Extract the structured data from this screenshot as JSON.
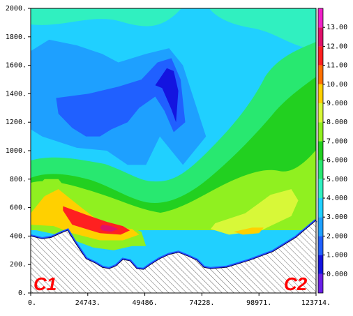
{
  "chart_data": {
    "type": "heatmap",
    "title": "",
    "xlabel": "",
    "ylabel": "",
    "x_ticks": [
      "0.",
      "24743.",
      "49486.",
      "74228.",
      "98971.",
      "123714."
    ],
    "y_ticks": [
      "0.",
      "200.",
      "400.",
      "600.",
      "800.",
      "1000.",
      "1200.",
      "1400.",
      "1600.",
      "1800.",
      "2000."
    ],
    "xlim": [
      0,
      123714
    ],
    "ylim": [
      0,
      2000
    ],
    "colorbar": {
      "ticks": [
        "0.000",
        "1.000",
        "2.000",
        "3.000",
        "4.000",
        "5.000",
        "6.000",
        "7.000",
        "8.000",
        "9.000",
        "10.00",
        "11.00",
        "12.00",
        "13.00"
      ],
      "range": [
        -1,
        14
      ],
      "colors": [
        "#6a1fe8",
        "#1414e0",
        "#2060ff",
        "#1ea0ff",
        "#20d0ff",
        "#30f0c0",
        "#28e870",
        "#22d020",
        "#90f020",
        "#d8f838",
        "#ffd000",
        "#ff7000",
        "#ff2020",
        "#e0106a",
        "#f020c8",
        "#c040ff"
      ]
    },
    "terrain_profile": [
      [
        0,
        400
      ],
      [
        5000,
        380
      ],
      [
        9000,
        390
      ],
      [
        13000,
        420
      ],
      [
        16000,
        440
      ],
      [
        19000,
        360
      ],
      [
        24000,
        240
      ],
      [
        28000,
        210
      ],
      [
        31000,
        180
      ],
      [
        34000,
        170
      ],
      [
        37000,
        190
      ],
      [
        40000,
        235
      ],
      [
        43000,
        225
      ],
      [
        46000,
        170
      ],
      [
        49000,
        165
      ],
      [
        52000,
        200
      ],
      [
        56000,
        240
      ],
      [
        60000,
        270
      ],
      [
        64000,
        285
      ],
      [
        68000,
        260
      ],
      [
        72000,
        230
      ],
      [
        75000,
        180
      ],
      [
        78000,
        170
      ],
      [
        85000,
        180
      ],
      [
        95000,
        230
      ],
      [
        105000,
        290
      ],
      [
        115000,
        390
      ],
      [
        123714,
        510
      ]
    ],
    "contour_regions": [
      {
        "level": 2,
        "label": "2.000",
        "points": [
          [
            0,
            1700
          ],
          [
            8000,
            1780
          ],
          [
            20000,
            1740
          ],
          [
            31000,
            1680
          ],
          [
            38000,
            1620
          ],
          [
            50000,
            1680
          ],
          [
            60000,
            1720
          ],
          [
            66000,
            1600
          ],
          [
            70000,
            1400
          ],
          [
            76000,
            1100
          ],
          [
            66000,
            900
          ],
          [
            56000,
            1100
          ],
          [
            50000,
            900
          ],
          [
            42000,
            900
          ],
          [
            33000,
            1000
          ],
          [
            20000,
            1020
          ],
          [
            5000,
            1100
          ],
          [
            0,
            1150
          ]
        ]
      },
      {
        "level": 1,
        "label": "1.000",
        "points": [
          [
            11000,
            1370
          ],
          [
            25000,
            1400
          ],
          [
            38000,
            1450
          ],
          [
            48000,
            1500
          ],
          [
            55000,
            1620
          ],
          [
            61000,
            1650
          ],
          [
            65000,
            1500
          ],
          [
            67000,
            1200
          ],
          [
            62000,
            1130
          ],
          [
            58000,
            1280
          ],
          [
            54000,
            1380
          ],
          [
            47000,
            1300
          ],
          [
            42000,
            1200
          ],
          [
            35000,
            1150
          ],
          [
            30000,
            1100
          ],
          [
            24000,
            1100
          ],
          [
            18000,
            1160
          ],
          [
            12000,
            1260
          ]
        ]
      },
      {
        "level": 0,
        "label": "0.000",
        "points": [
          [
            54000,
            1460
          ],
          [
            59000,
            1580
          ],
          [
            62000,
            1560
          ],
          [
            64000,
            1420
          ],
          [
            63000,
            1200
          ],
          [
            61000,
            1290
          ],
          [
            57000,
            1440
          ]
        ]
      },
      {
        "level": 7,
        "label": "7.000",
        "points": [
          [
            0,
            700
          ],
          [
            6000,
            800
          ],
          [
            12000,
            800
          ],
          [
            20000,
            640
          ],
          [
            28000,
            560
          ],
          [
            36000,
            500
          ],
          [
            44000,
            460
          ],
          [
            48000,
            430
          ],
          [
            50000,
            330
          ],
          [
            44000,
            330
          ],
          [
            36000,
            300
          ],
          [
            27000,
            320
          ],
          [
            14000,
            400
          ],
          [
            0,
            450
          ]
        ]
      },
      {
        "level": 9,
        "label": "9.000",
        "points": [
          [
            0,
            560
          ],
          [
            6000,
            680
          ],
          [
            12000,
            730
          ],
          [
            22000,
            600
          ],
          [
            30000,
            500
          ],
          [
            38000,
            460
          ],
          [
            44000,
            450
          ],
          [
            47000,
            410
          ],
          [
            40000,
            370
          ],
          [
            30000,
            370
          ],
          [
            18000,
            420
          ],
          [
            10000,
            470
          ],
          [
            0,
            480
          ]
        ]
      },
      {
        "level": 11,
        "label": "11.00",
        "points": [
          [
            14000,
            610
          ],
          [
            24000,
            550
          ],
          [
            33000,
            500
          ],
          [
            40000,
            470
          ],
          [
            43000,
            440
          ],
          [
            39000,
            410
          ],
          [
            30000,
            420
          ],
          [
            18000,
            480
          ],
          [
            14000,
            580
          ]
        ]
      },
      {
        "level": 12,
        "label": "12.00",
        "points": [
          [
            31000,
            480
          ],
          [
            35000,
            470
          ],
          [
            38000,
            450
          ],
          [
            35000,
            430
          ],
          [
            31000,
            440
          ],
          [
            30000,
            460
          ]
        ]
      },
      {
        "level": 8,
        "label": "8.000",
        "points": [
          [
            80000,
            490
          ],
          [
            93000,
            560
          ],
          [
            104000,
            690
          ],
          [
            113000,
            730
          ],
          [
            116000,
            650
          ],
          [
            113000,
            540
          ],
          [
            100000,
            440
          ],
          [
            86000,
            410
          ],
          [
            78000,
            450
          ]
        ]
      },
      {
        "level": 9,
        "label": "9.000",
        "points": [
          [
            88000,
            430
          ],
          [
            96000,
            460
          ],
          [
            101000,
            460
          ],
          [
            99000,
            420
          ],
          [
            92000,
            410
          ]
        ]
      }
    ],
    "end_labels": [
      "C1",
      "C2"
    ]
  }
}
